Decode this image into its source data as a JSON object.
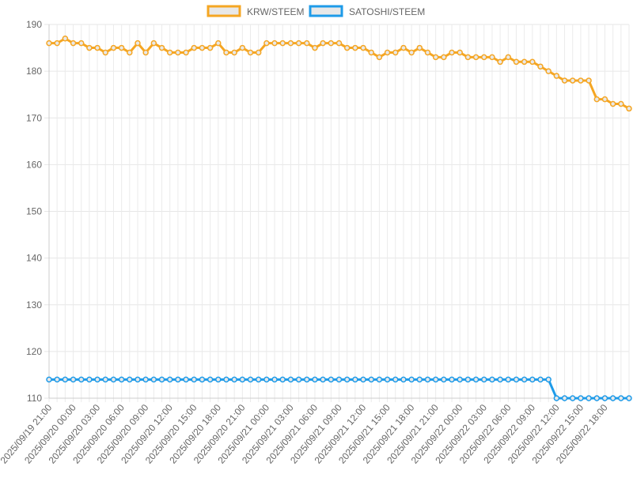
{
  "chart_data": {
    "type": "line",
    "title": "",
    "xlabel": "",
    "ylabel": "",
    "ylim": [
      110,
      190
    ],
    "yticks": [
      110,
      120,
      130,
      140,
      150,
      160,
      170,
      180,
      190
    ],
    "grid": true,
    "legend_position": "top-center",
    "x_start": "2025/09/19 21:00",
    "x_end": "2025/09/22 21:00",
    "x_step_hours": 1,
    "xtick_labels": [
      "2025/09/19 21:00",
      "2025/09/20 00:00",
      "2025/09/20 03:00",
      "2025/09/20 06:00",
      "2025/09/20 09:00",
      "2025/09/20 12:00",
      "2025/09/20 15:00",
      "2025/09/20 18:00",
      "2025/09/20 21:00",
      "2025/09/21 00:00",
      "2025/09/21 03:00",
      "2025/09/21 06:00",
      "2025/09/21 09:00",
      "2025/09/21 12:00",
      "2025/09/21 15:00",
      "2025/09/21 18:00",
      "2025/09/21 21:00",
      "2025/09/22 00:00",
      "2025/09/22 03:00",
      "2025/09/22 06:00",
      "2025/09/22 09:00",
      "2025/09/22 12:00",
      "2025/09/22 15:00",
      "2025/09/22 18:00"
    ],
    "series": [
      {
        "name": "KRW/STEEM",
        "color": "#f5a623",
        "values": [
          186,
          186,
          187,
          186,
          186,
          185,
          185,
          184,
          185,
          185,
          184,
          186,
          184,
          186,
          185,
          184,
          184,
          184,
          185,
          185,
          185,
          186,
          184,
          184,
          185,
          184,
          184,
          186,
          186,
          186,
          186,
          186,
          186,
          185,
          186,
          186,
          186,
          185,
          185,
          185,
          184,
          183,
          184,
          184,
          185,
          184,
          185,
          184,
          183,
          183,
          184,
          184,
          183,
          183,
          183,
          183,
          182,
          183,
          182,
          182,
          182,
          181,
          180,
          179,
          178,
          178,
          178,
          178,
          174,
          174,
          173,
          173,
          172
        ]
      },
      {
        "name": "SATOSHI/STEEM",
        "color": "#1e9be9",
        "values": [
          114,
          114,
          114,
          114,
          114,
          114,
          114,
          114,
          114,
          114,
          114,
          114,
          114,
          114,
          114,
          114,
          114,
          114,
          114,
          114,
          114,
          114,
          114,
          114,
          114,
          114,
          114,
          114,
          114,
          114,
          114,
          114,
          114,
          114,
          114,
          114,
          114,
          114,
          114,
          114,
          114,
          114,
          114,
          114,
          114,
          114,
          114,
          114,
          114,
          114,
          114,
          114,
          114,
          114,
          114,
          114,
          114,
          114,
          114,
          114,
          114,
          114,
          114,
          110,
          110,
          110,
          110,
          110,
          110,
          110,
          110,
          110,
          110
        ]
      }
    ]
  }
}
